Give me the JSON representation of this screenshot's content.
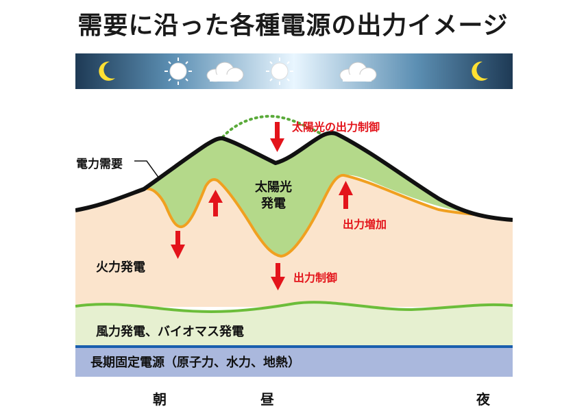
{
  "title": "需要に沿った各種電源の出力イメージ",
  "sky": {
    "icons": [
      "moon-icon",
      "sun-icon",
      "cloud-icon",
      "sun-icon",
      "cloud-icon",
      "moon-icon"
    ]
  },
  "labels": {
    "demand": "電力需要",
    "solar_line1": "太陽光",
    "solar_line2": "発電",
    "solar_curtail": "太陽光の出力制御",
    "output_increase": "出力増加",
    "output_control": "出力制御",
    "thermal": "火力発電",
    "wind_biomass": "風力発電、バイオマス発電",
    "baseload": "長期固定電源（原子力、水力、地熱）"
  },
  "time_axis": [
    "朝",
    "昼",
    "夜"
  ],
  "colors": {
    "demand_line": "#111111",
    "solar_fill": "#b4d98a",
    "thermal_fill": "#fbe4cc",
    "thermal_line": "#f0a020",
    "wind_fill": "#e6f0d0",
    "wind_line": "#6cbd3a",
    "baseload_fill": "#aab8dd",
    "baseload_line": "#1a5fae",
    "arrow": "#e3141b"
  }
}
